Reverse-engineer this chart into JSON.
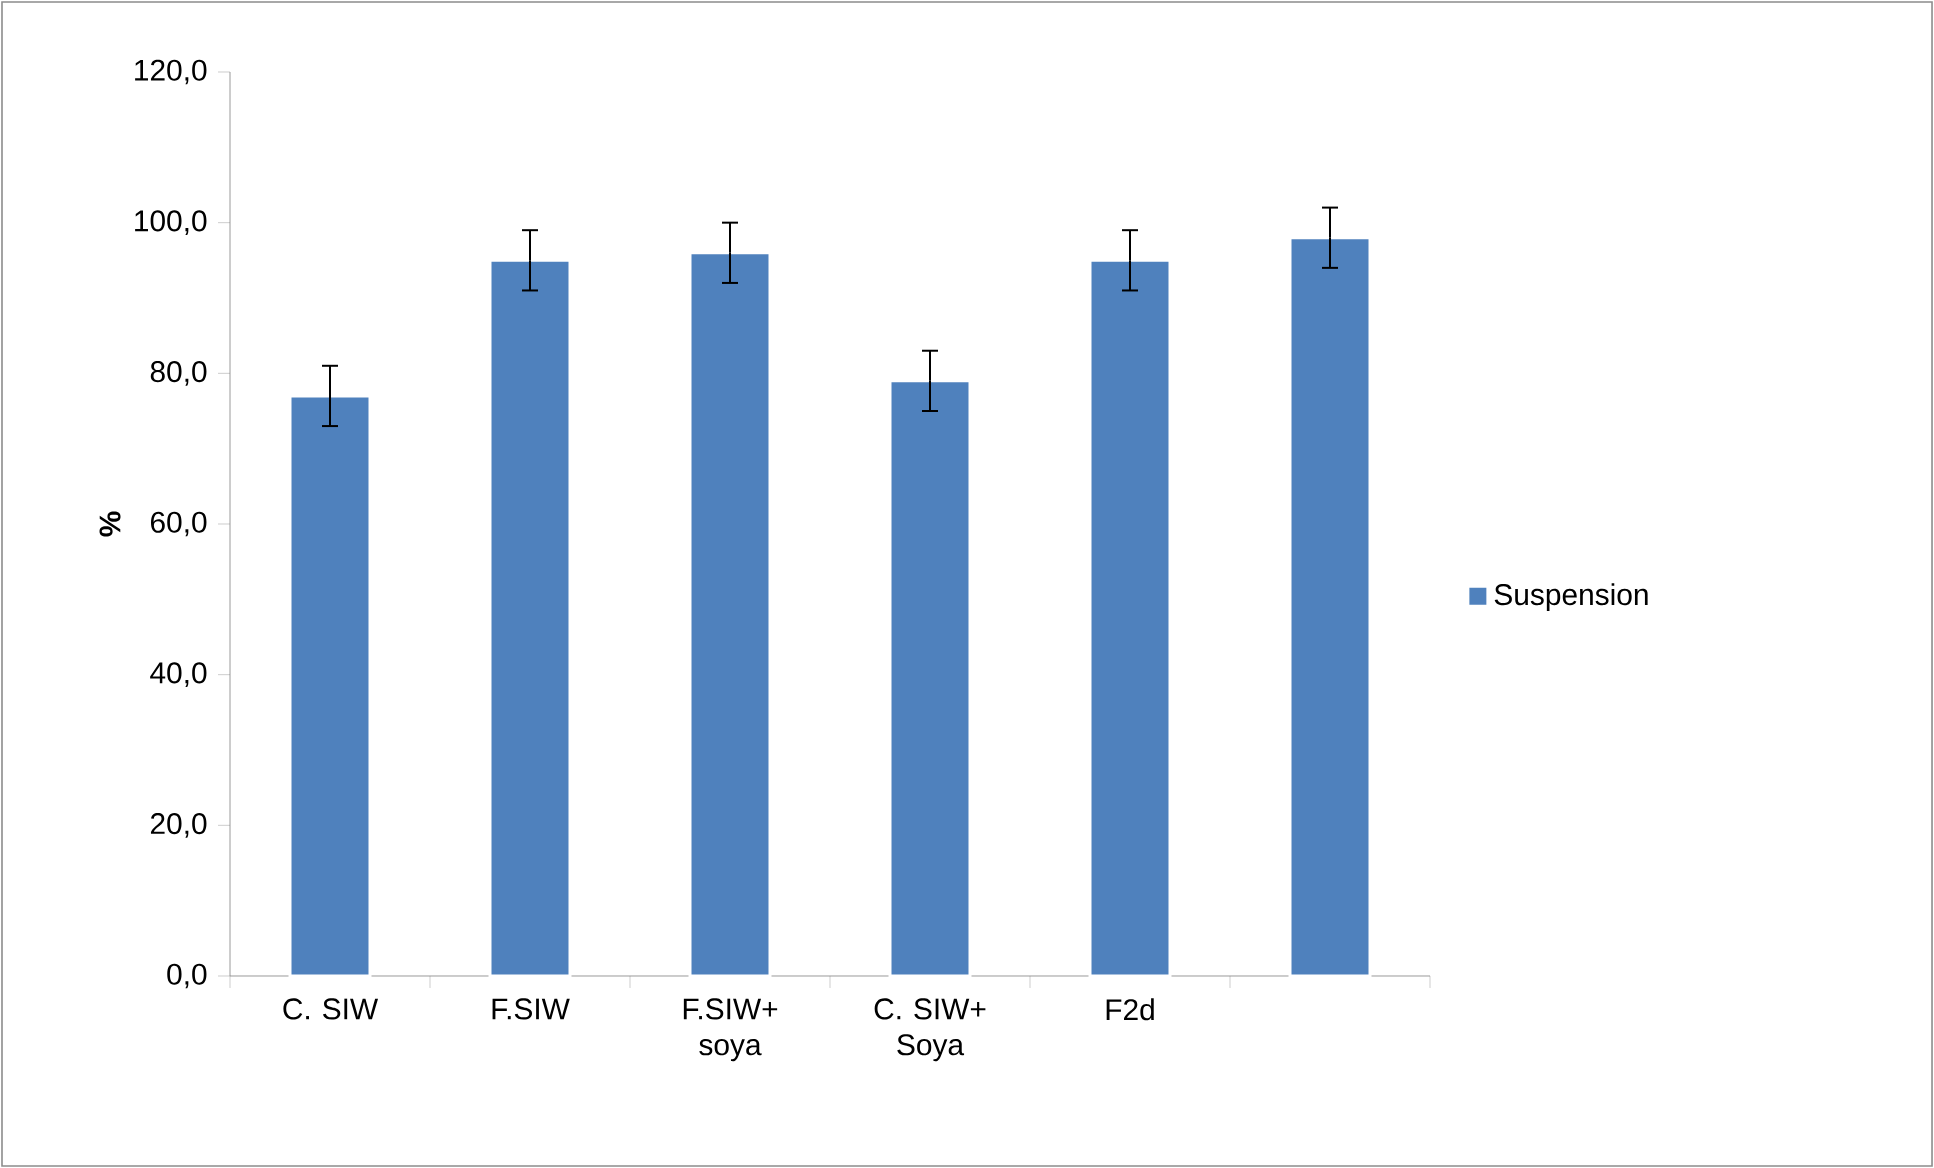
{
  "chart_data": {
    "type": "bar",
    "ylabel": "%",
    "categories": [
      "C. SIW",
      "F.SIW",
      "F.SIW+ soya",
      "C. SIW+ Soya",
      "F2d",
      null
    ],
    "series": [
      {
        "name": "Suspension",
        "color": "#4f81bd",
        "values": [
          77,
          95,
          96,
          79,
          95,
          98
        ],
        "errors": [
          4,
          4,
          4,
          4,
          4,
          4
        ]
      }
    ],
    "ylim": [
      0,
      120
    ],
    "yticks": [
      {
        "value": 0,
        "label": "0,0"
      },
      {
        "value": 20,
        "label": "20,0"
      },
      {
        "value": 40,
        "label": "40,0"
      },
      {
        "value": 60,
        "label": "60,0"
      },
      {
        "value": 80,
        "label": "80,0"
      },
      {
        "value": 100,
        "label": "100,0"
      },
      {
        "value": 120,
        "label": "120,0"
      }
    ],
    "legend": "right",
    "grid": false
  }
}
